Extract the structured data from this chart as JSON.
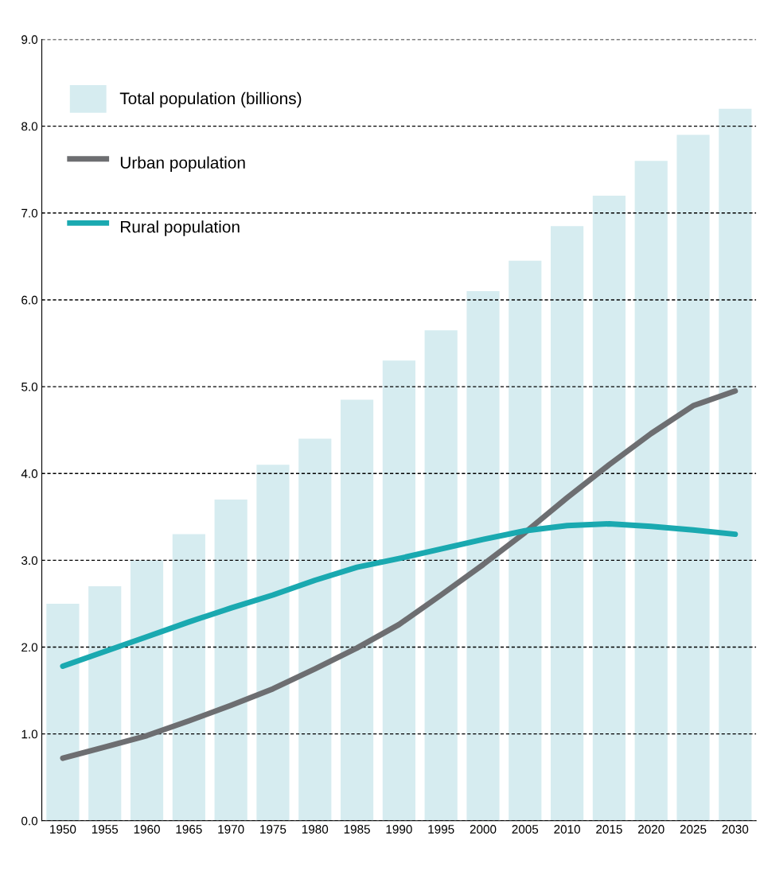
{
  "chart_data": {
    "type": "bar",
    "categories": [
      "1950",
      "1955",
      "1960",
      "1965",
      "1970",
      "1975",
      "1980",
      "1985",
      "1990",
      "1995",
      "2000",
      "2005",
      "2010",
      "2015",
      "2020",
      "2025",
      "2030"
    ],
    "series": [
      {
        "name": "Total population (billions)",
        "color": "#d6ecf0",
        "values": [
          2.5,
          2.7,
          3.0,
          3.3,
          3.7,
          4.1,
          4.4,
          4.85,
          5.3,
          5.65,
          6.1,
          6.45,
          6.85,
          7.2,
          7.6,
          7.9,
          8.2
        ]
      },
      {
        "name": "Urban population",
        "type": "line",
        "color": "#6d6e71",
        "values": [
          0.72,
          0.85,
          0.98,
          1.15,
          1.33,
          1.52,
          1.75,
          1.99,
          2.26,
          2.6,
          2.95,
          3.32,
          3.72,
          4.1,
          4.46,
          4.78,
          4.95
        ]
      },
      {
        "name": "Rural population",
        "type": "line",
        "color": "#1aa9b0",
        "values": [
          1.78,
          1.95,
          2.12,
          2.29,
          2.45,
          2.6,
          2.77,
          2.92,
          3.02,
          3.13,
          3.24,
          3.34,
          3.4,
          3.42,
          3.39,
          3.35,
          3.3
        ]
      }
    ],
    "ylim": [
      0,
      9
    ],
    "yticks": [
      {
        "value": 0,
        "label": "0.0"
      },
      {
        "value": 1,
        "label": "1.0"
      },
      {
        "value": 2,
        "label": "2.0"
      },
      {
        "value": 3,
        "label": "3.0"
      },
      {
        "value": 4,
        "label": "4.0"
      },
      {
        "value": 5,
        "label": "5.0"
      },
      {
        "value": 6,
        "label": "6.0"
      },
      {
        "value": 7,
        "label": "7.0"
      },
      {
        "value": 8,
        "label": "8.0"
      },
      {
        "value": 9,
        "label": "9.0"
      }
    ],
    "grid": "y",
    "legend": "top left",
    "line_style": "solid",
    "marker": "none"
  }
}
